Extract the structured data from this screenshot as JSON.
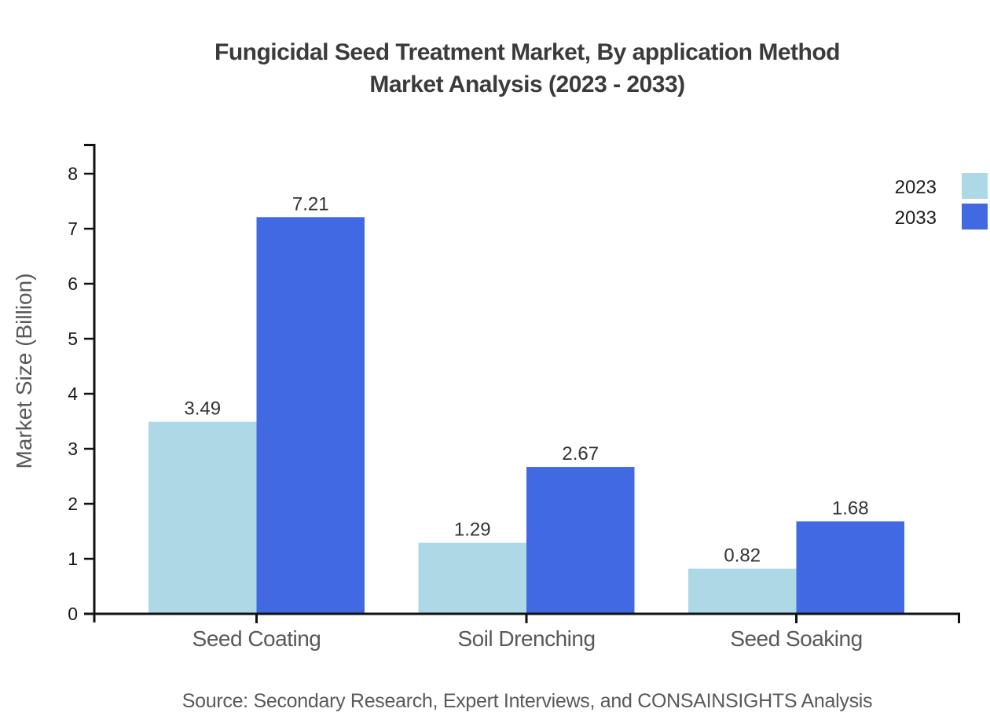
{
  "title": {
    "line1": "Fungicidal Seed Treatment Market, By application Method",
    "line2": "Market Analysis (2023 - 2033)"
  },
  "source_note": "Source: Secondary Research, Expert Interviews, and CONSAINSIGHTS Analysis",
  "chart_data": {
    "type": "bar",
    "title": "Fungicidal Seed Treatment Market, By application Method Market Analysis (2023 - 2033)",
    "categories": [
      "Seed Coating",
      "Soil Drenching",
      "Seed Soaking"
    ],
    "series": [
      {
        "name": "2023",
        "color": "#ADD8E6",
        "values": [
          3.49,
          1.29,
          0.82
        ]
      },
      {
        "name": "2033",
        "color": "#4169E1",
        "values": [
          7.21,
          2.67,
          1.68
        ]
      }
    ],
    "xlabel": "",
    "ylabel": "Market Size (Billion)",
    "ylim": [
      0,
      8
    ],
    "yticks": [
      0,
      1,
      2,
      3,
      4,
      5,
      6,
      7,
      8
    ],
    "grid": false,
    "legend_position": "top-right",
    "value_labels": true,
    "value_label_format": "0.00"
  }
}
